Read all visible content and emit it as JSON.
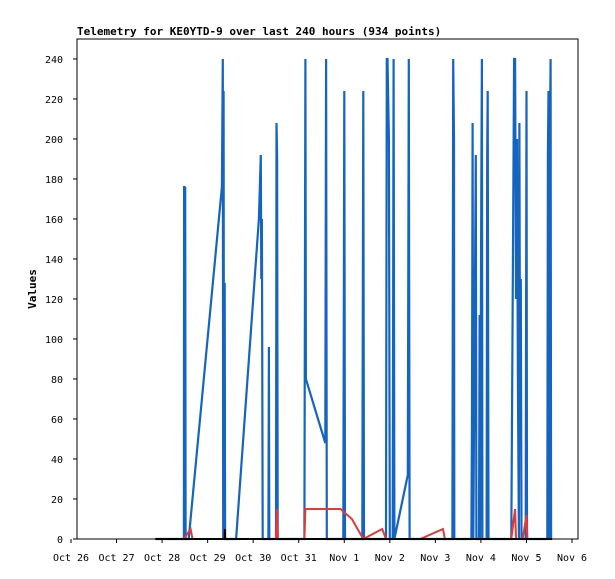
{
  "chart_data": {
    "type": "line",
    "title": "Telemetry for KE0YTD-9 over last 240 hours (934 points)",
    "ylabel": "Values",
    "xlabel": "",
    "ylim": [
      0,
      250
    ],
    "yticks": [
      0,
      20,
      40,
      60,
      80,
      100,
      120,
      140,
      160,
      180,
      200,
      220,
      240
    ],
    "xlim": [
      0,
      240
    ],
    "xticks": [
      {
        "label": "Oct 26",
        "hour": 0
      },
      {
        "label": "Oct 27",
        "hour": 24
      },
      {
        "label": "Oct 28",
        "hour": 48
      },
      {
        "label": "Oct 29",
        "hour": 72
      },
      {
        "label": "Oct 30",
        "hour": 96
      },
      {
        "label": "Oct 31",
        "hour": 120
      },
      {
        "label": "Nov 1",
        "hour": 144
      },
      {
        "label": "Nov 2",
        "hour": 168
      },
      {
        "label": "Nov 3",
        "hour": 192
      },
      {
        "label": "Nov 4",
        "hour": 216
      },
      {
        "label": "Nov 5",
        "hour": 240
      },
      {
        "label": "Nov 6",
        "hour": 264
      }
    ],
    "grid": false,
    "series": [
      {
        "color": "#1565c0",
        "points": [
          [
            20.5,
            0
          ],
          [
            35.5,
            0
          ],
          [
            35.6,
            176
          ],
          [
            35.8,
            176
          ],
          [
            36.0,
            140
          ],
          [
            36.2,
            176
          ],
          [
            36.4,
            0
          ],
          [
            37.5,
            0
          ],
          [
            38,
            0
          ],
          [
            55.5,
            176
          ],
          [
            56,
            240
          ],
          [
            56.2,
            0
          ],
          [
            56.4,
            224
          ],
          [
            56.6,
            0
          ],
          [
            57,
            128
          ],
          [
            57.2,
            0
          ],
          [
            61.5,
            0
          ],
          [
            63,
            0
          ],
          [
            75,
            160
          ],
          [
            76,
            192
          ],
          [
            76.3,
            130
          ],
          [
            76.6,
            160
          ],
          [
            77,
            0
          ],
          [
            80,
            0
          ],
          [
            80.3,
            96
          ],
          [
            80.5,
            0
          ],
          [
            84,
            0
          ],
          [
            84.3,
            208
          ],
          [
            84.6,
            192
          ],
          [
            84.9,
            0
          ],
          [
            99,
            0
          ],
          [
            99.5,
            240
          ],
          [
            99.8,
            80
          ],
          [
            110,
            48
          ],
          [
            110.4,
            240
          ],
          [
            110.8,
            0
          ],
          [
            119.5,
            0
          ],
          [
            120,
            224
          ],
          [
            120.4,
            0
          ],
          [
            129.5,
            0
          ],
          [
            130,
            224
          ],
          [
            130.4,
            0
          ],
          [
            142,
            0
          ],
          [
            142.4,
            240
          ],
          [
            142.8,
            240
          ],
          [
            143.5,
            200
          ],
          [
            144,
            0
          ],
          [
            145.5,
            0
          ],
          [
            146,
            240
          ],
          [
            146.4,
            0
          ],
          [
            153.5,
            32
          ],
          [
            154,
            240
          ],
          [
            154.4,
            0
          ],
          [
            177,
            0
          ],
          [
            177.4,
            240
          ],
          [
            177.8,
            200
          ],
          [
            178,
            0
          ],
          [
            187,
            0
          ],
          [
            187.3,
            64
          ],
          [
            187.6,
            208
          ],
          [
            188,
            0
          ],
          [
            189.3,
            192
          ],
          [
            189.6,
            0
          ],
          [
            191,
            0
          ],
          [
            191.3,
            112
          ],
          [
            191.6,
            0
          ],
          [
            192.2,
            176
          ],
          [
            192.5,
            240
          ],
          [
            192.8,
            0
          ],
          [
            195,
            0
          ],
          [
            195.3,
            192
          ],
          [
            195.6,
            224
          ],
          [
            196,
            0
          ],
          [
            208,
            0
          ],
          [
            209.5,
            240
          ],
          [
            210,
            240
          ],
          [
            210.5,
            120
          ],
          [
            211,
            200
          ],
          [
            211.5,
            80
          ],
          [
            212,
            0
          ],
          [
            212.3,
            208
          ],
          [
            212.6,
            80
          ],
          [
            213,
            130
          ],
          [
            213.4,
            0
          ],
          [
            215.6,
            0
          ],
          [
            216,
            224
          ],
          [
            216.3,
            0
          ],
          [
            227,
            0
          ],
          [
            227.3,
            192
          ],
          [
            227.6,
            224
          ],
          [
            227.9,
            0
          ],
          [
            228.4,
            208
          ],
          [
            228.7,
            240
          ],
          [
            229,
            0
          ],
          [
            229.5,
            0
          ]
        ]
      },
      {
        "color": "#e53935",
        "points": [
          [
            20.5,
            0
          ],
          [
            35.5,
            0
          ],
          [
            39,
            5
          ],
          [
            40,
            0
          ],
          [
            84,
            0
          ],
          [
            84.5,
            15
          ],
          [
            85,
            0
          ],
          [
            99,
            0
          ],
          [
            99.5,
            15
          ],
          [
            110,
            15
          ],
          [
            118,
            15
          ],
          [
            124,
            10
          ],
          [
            130,
            0
          ],
          [
            140,
            5
          ],
          [
            142,
            0
          ],
          [
            160,
            0
          ],
          [
            172,
            5
          ],
          [
            173,
            0
          ],
          [
            208,
            0
          ],
          [
            210,
            15
          ],
          [
            210.5,
            0
          ],
          [
            214,
            0
          ],
          [
            216,
            12
          ],
          [
            216.5,
            0
          ]
        ]
      },
      {
        "color": "#000000",
        "points": [
          [
            20.5,
            0
          ],
          [
            57,
            0
          ],
          [
            57.1,
            5
          ],
          [
            57.2,
            0
          ],
          [
            229.5,
            0
          ]
        ]
      }
    ]
  }
}
